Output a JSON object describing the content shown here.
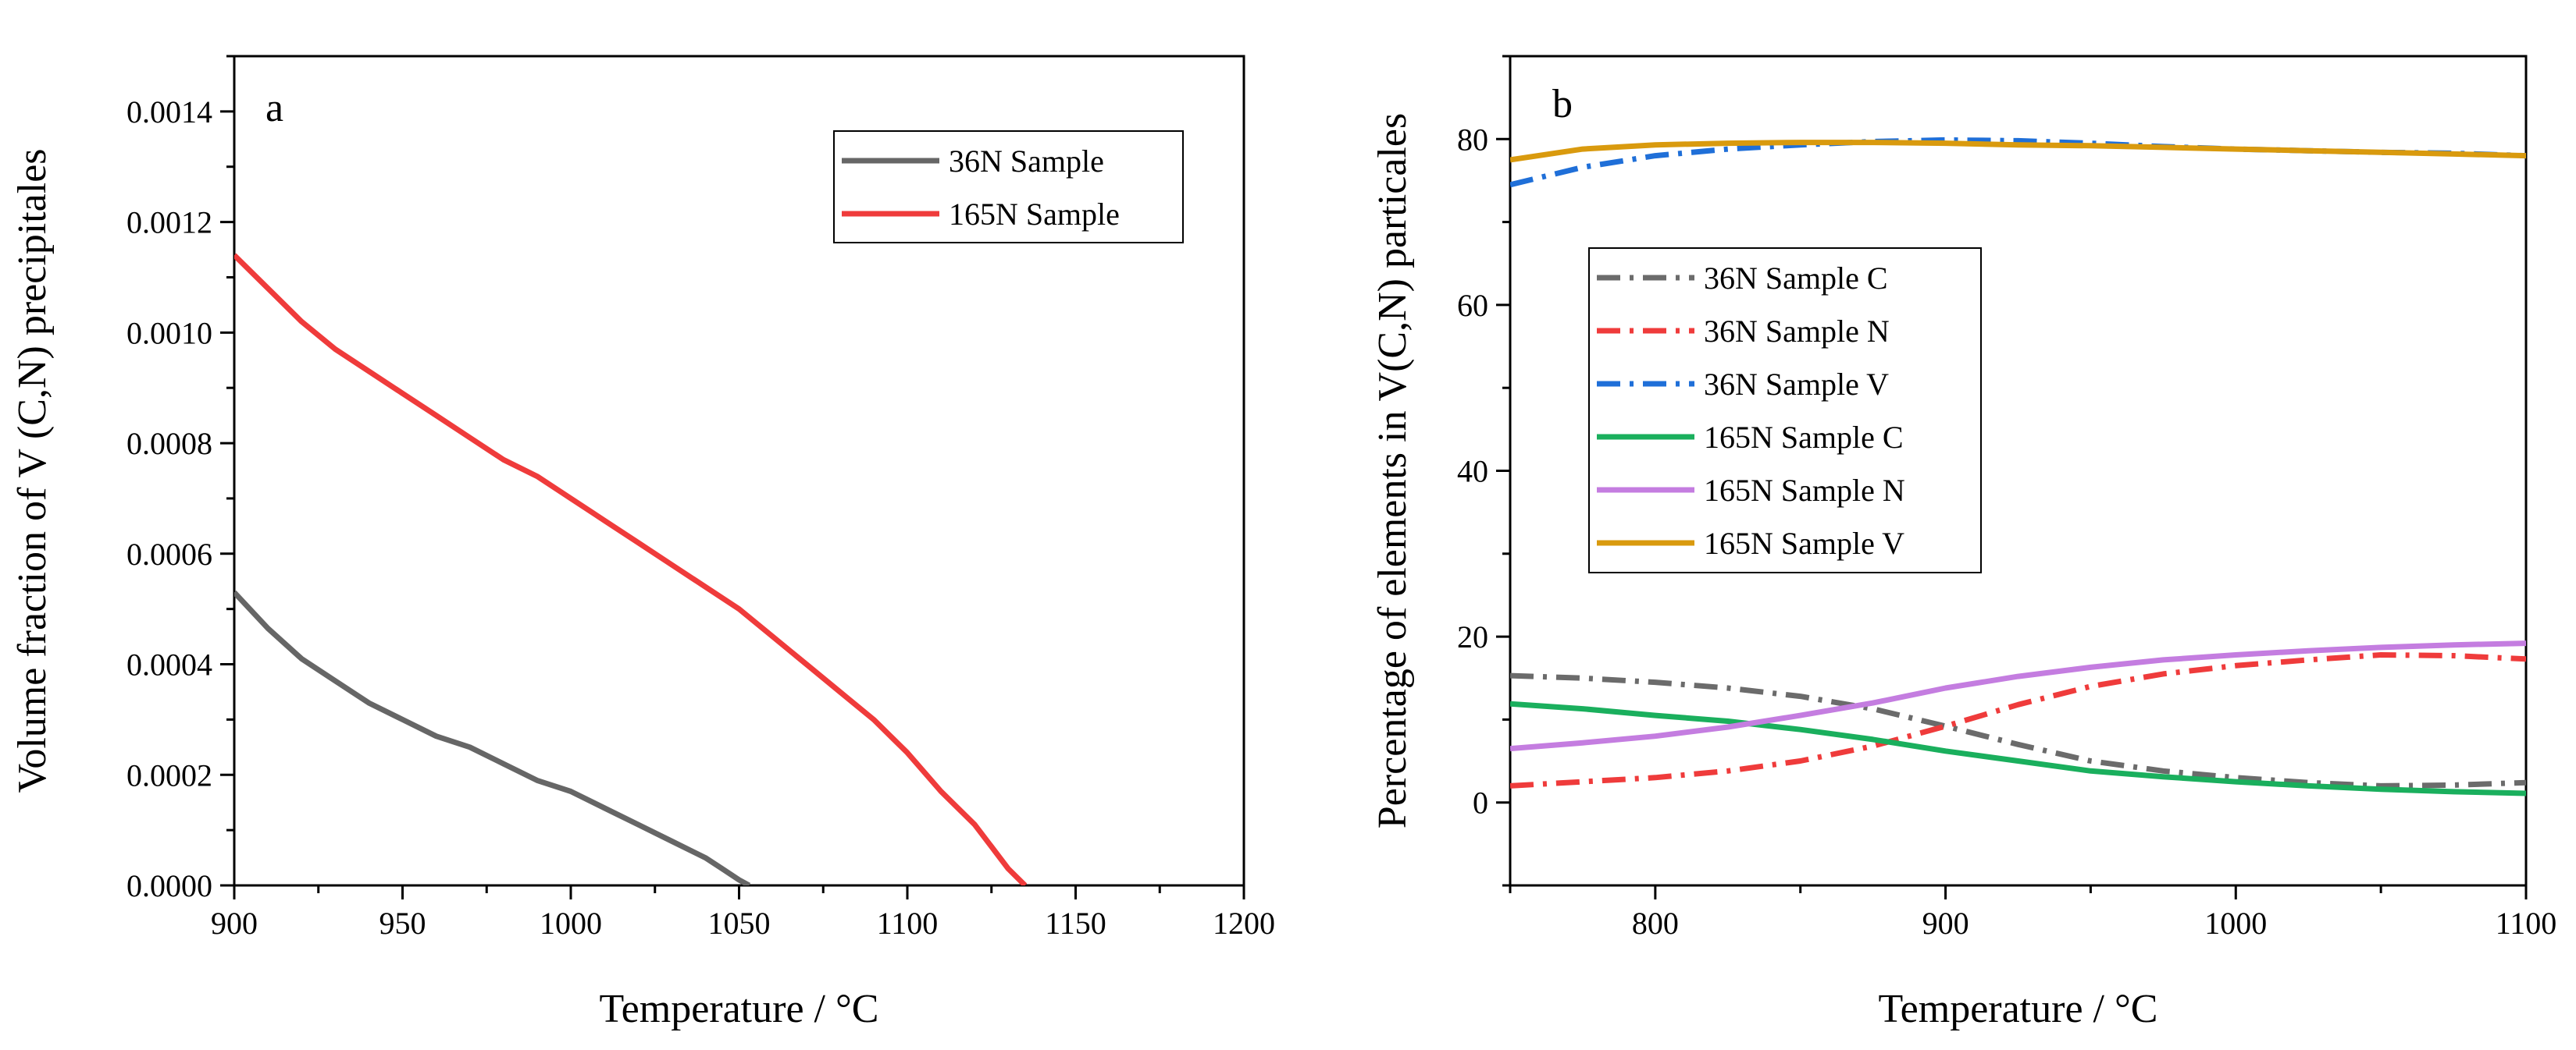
{
  "chart_data": [
    {
      "panel": "a",
      "type": "line",
      "xlabel": "Temperature / °C",
      "ylabel": "Volume fraction of V (C,N) precipitales",
      "xlim": [
        900,
        1200
      ],
      "ylim": [
        0,
        0.0015
      ],
      "xticks": [
        "900",
        "950",
        "1000",
        "1050",
        "1100",
        "1150",
        "1200"
      ],
      "yticks": [
        "0.0000",
        "0.0002",
        "0.0004",
        "0.0006",
        "0.0008",
        "0.0010",
        "0.0012",
        "0.0014"
      ],
      "legend_position": "top-right",
      "series": [
        {
          "name": "36N Sample",
          "color": "#666666",
          "style": "solid",
          "x": [
            900,
            910,
            920,
            930,
            940,
            950,
            960,
            970,
            980,
            990,
            1000,
            1010,
            1020,
            1030,
            1040,
            1045,
            1050,
            1053
          ],
          "y": [
            0.00053,
            0.000465,
            0.00041,
            0.00037,
            0.00033,
            0.0003,
            0.00027,
            0.00025,
            0.00022,
            0.00019,
            0.00017,
            0.00014,
            0.00011,
            8e-05,
            5e-05,
            3e-05,
            1e-05,
            0.0
          ]
        },
        {
          "name": "165N Sample",
          "color": "#ef3b3b",
          "style": "solid",
          "x": [
            900,
            910,
            920,
            930,
            940,
            950,
            960,
            970,
            980,
            990,
            1000,
            1010,
            1020,
            1030,
            1040,
            1050,
            1060,
            1070,
            1080,
            1090,
            1100,
            1110,
            1120,
            1125,
            1130,
            1135
          ],
          "y": [
            0.00114,
            0.00108,
            0.00102,
            0.00097,
            0.00093,
            0.00089,
            0.00085,
            0.00081,
            0.00077,
            0.00074,
            0.0007,
            0.00066,
            0.00062,
            0.00058,
            0.00054,
            0.0005,
            0.00045,
            0.0004,
            0.00035,
            0.0003,
            0.00024,
            0.00017,
            0.00011,
            7e-05,
            3e-05,
            0.0
          ]
        }
      ]
    },
    {
      "panel": "b",
      "type": "line",
      "xlabel": "Temperature / °C",
      "ylabel": "Percentage of elements in V(C,N) particales",
      "xlim": [
        750,
        1100
      ],
      "ylim": [
        -10,
        90
      ],
      "xticks": [
        "800",
        "900",
        "1000",
        "1100"
      ],
      "yticks": [
        "0",
        "20",
        "40",
        "60",
        "80"
      ],
      "legend_position": "middle-left",
      "series": [
        {
          "name": "36N Sample C",
          "color": "#6b6b6b",
          "style": "dashdot",
          "x": [
            750,
            775,
            800,
            825,
            850,
            875,
            900,
            925,
            950,
            975,
            1000,
            1025,
            1050,
            1075,
            1100
          ],
          "y": [
            15.3,
            15.0,
            14.5,
            13.8,
            12.8,
            11.3,
            9.2,
            7.0,
            5.0,
            3.8,
            3.0,
            2.4,
            2.0,
            2.1,
            2.4
          ]
        },
        {
          "name": "36N Sample N",
          "color": "#ef3b3b",
          "style": "dashdot",
          "x": [
            750,
            775,
            800,
            825,
            850,
            875,
            900,
            925,
            950,
            975,
            1000,
            1025,
            1050,
            1075,
            1100
          ],
          "y": [
            2.0,
            2.5,
            3.0,
            3.8,
            5.0,
            6.8,
            9.2,
            11.8,
            14.0,
            15.5,
            16.5,
            17.2,
            17.8,
            17.7,
            17.3
          ]
        },
        {
          "name": "36N Sample V",
          "color": "#1f6fd8",
          "style": "dashdot",
          "x": [
            750,
            775,
            800,
            825,
            850,
            875,
            900,
            925,
            950,
            975,
            1000,
            1025,
            1050,
            1075,
            1100
          ],
          "y": [
            74.5,
            76.6,
            78.0,
            78.8,
            79.3,
            79.7,
            79.9,
            79.8,
            79.5,
            79.1,
            78.8,
            78.6,
            78.4,
            78.3,
            78.0
          ]
        },
        {
          "name": "165N Sample C",
          "color": "#1aaf5d",
          "style": "solid",
          "x": [
            750,
            775,
            800,
            825,
            850,
            875,
            900,
            925,
            950,
            975,
            1000,
            1025,
            1050,
            1075,
            1100
          ],
          "y": [
            11.9,
            11.3,
            10.5,
            9.8,
            8.8,
            7.6,
            6.2,
            5.0,
            3.8,
            3.1,
            2.5,
            2.0,
            1.6,
            1.3,
            1.1
          ]
        },
        {
          "name": "165N Sample N",
          "color": "#c47de0",
          "style": "solid",
          "x": [
            750,
            775,
            800,
            825,
            850,
            875,
            900,
            925,
            950,
            975,
            1000,
            1025,
            1050,
            1075,
            1100
          ],
          "y": [
            6.5,
            7.2,
            8.0,
            9.1,
            10.5,
            12.0,
            13.8,
            15.2,
            16.3,
            17.2,
            17.8,
            18.3,
            18.7,
            19.0,
            19.2
          ]
        },
        {
          "name": "165N Sample V",
          "color": "#d99a0e",
          "style": "solid",
          "x": [
            750,
            775,
            800,
            825,
            850,
            875,
            900,
            925,
            950,
            975,
            1000,
            1025,
            1050,
            1075,
            1100
          ],
          "y": [
            77.5,
            78.8,
            79.3,
            79.5,
            79.6,
            79.6,
            79.5,
            79.3,
            79.2,
            79.0,
            78.8,
            78.6,
            78.4,
            78.2,
            78.0
          ]
        }
      ]
    }
  ]
}
